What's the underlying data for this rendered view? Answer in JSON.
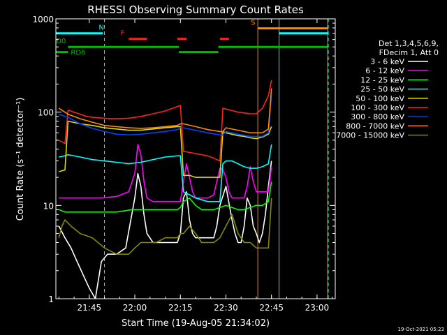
{
  "chart_data": {
    "type": "line",
    "title": "RHESSI Observing Summary Count Rates",
    "xlabel": "Start Time (19-Aug-05 21:34:02)",
    "ylabel": "Count Rate (s⁻¹ detector⁻¹)",
    "x_unit": "minutes after 21:34:02",
    "x_range": [
      0,
      92
    ],
    "y_scale": "log",
    "y_range": [
      1,
      1000
    ],
    "x_ticks": [
      {
        "t": 11,
        "label": "21:45"
      },
      {
        "t": 26,
        "label": "22:00"
      },
      {
        "t": 41,
        "label": "22:15"
      },
      {
        "t": 56,
        "label": "22:30"
      },
      {
        "t": 71,
        "label": "22:45"
      },
      {
        "t": 86,
        "label": "23:00"
      }
    ],
    "y_ticks": [
      {
        "v": 1,
        "label": "1"
      },
      {
        "v": 10,
        "label": "10"
      },
      {
        "v": 100,
        "label": "100"
      },
      {
        "v": 1000,
        "label": "1000"
      }
    ],
    "legend_header": [
      "Det 1,3,4,5,6,9,",
      "FDecim 1, Att 0"
    ],
    "series": [
      {
        "name": "3 - 6 keV",
        "color": "#ffffff",
        "x": [
          1,
          3,
          5,
          7,
          9,
          11,
          13,
          15,
          17,
          20,
          23,
          26,
          27,
          28,
          29,
          30,
          32,
          34,
          36,
          38,
          40,
          41,
          42,
          43,
          44,
          45,
          46,
          47,
          48,
          50,
          52,
          53,
          54,
          56,
          58,
          59,
          60,
          61,
          62,
          63,
          64,
          65,
          66,
          67,
          68,
          69,
          70,
          71
        ],
        "y": [
          6,
          4.5,
          3.5,
          2.5,
          1.8,
          1.3,
          1.0,
          2.5,
          3,
          3,
          3.5,
          12,
          22,
          16,
          8,
          5,
          4,
          4,
          4,
          4,
          4,
          5,
          12,
          14,
          7,
          5,
          4.5,
          4.5,
          4.5,
          4.5,
          4.5,
          6,
          10,
          16,
          7,
          5,
          4,
          4,
          6,
          12,
          10,
          6,
          5,
          4,
          5,
          8,
          16,
          30
        ]
      },
      {
        "name": "6 - 12 keV",
        "color": "#ff00ff",
        "x": [
          1,
          5,
          10,
          15,
          20,
          24,
          26,
          27,
          28,
          29,
          30,
          32,
          35,
          38,
          40,
          41,
          42,
          43,
          44,
          45,
          46,
          48,
          50,
          52,
          53,
          54,
          55,
          56,
          57,
          58,
          60,
          62,
          63,
          64,
          65,
          66,
          68,
          70,
          71
        ],
        "y": [
          12,
          12,
          12,
          12,
          12.5,
          14,
          22,
          45,
          35,
          18,
          12,
          11,
          11,
          11,
          11,
          11,
          18,
          28,
          20,
          14,
          12,
          12,
          12,
          13,
          18,
          25,
          24,
          20,
          14,
          12,
          12,
          12,
          16,
          26,
          18,
          14,
          14,
          14,
          26
        ]
      },
      {
        "name": "12 - 25 keV",
        "color": "#00ff00",
        "x": [
          1,
          3,
          6,
          10,
          15,
          20,
          25,
          30,
          35,
          40,
          41,
          42,
          44,
          46,
          48,
          50,
          52,
          54,
          56,
          58,
          60,
          62,
          64,
          66,
          68,
          70,
          71
        ],
        "y": [
          9,
          8.5,
          8.5,
          8.5,
          8.5,
          8.5,
          9,
          9,
          9,
          9,
          9.5,
          11,
          12,
          10,
          9,
          9,
          9,
          9.5,
          10,
          9.5,
          9,
          9,
          9.5,
          10,
          10,
          11,
          18
        ]
      },
      {
        "name": "25 - 50 keV",
        "color": "#00ffff",
        "x": [
          1,
          3,
          4,
          8,
          12,
          16,
          20,
          24,
          28,
          32,
          36,
          40,
          41,
          42,
          44,
          46,
          48,
          50,
          52,
          54,
          55,
          56,
          58,
          60,
          62,
          64,
          66,
          68,
          70,
          71
        ],
        "y": [
          33,
          34,
          35,
          33,
          31,
          30,
          29,
          28,
          29,
          31,
          33,
          34,
          34,
          14,
          13,
          12,
          11.5,
          11,
          11,
          11,
          28,
          30,
          30,
          28,
          26,
          25,
          25,
          26,
          28,
          45
        ]
      },
      {
        "name": "50 - 100 keV",
        "color": "#dddd00",
        "x": [
          1,
          3,
          4,
          8,
          12,
          16,
          20,
          24,
          28,
          32,
          36,
          40,
          41,
          42,
          44,
          46,
          48,
          50,
          52,
          54,
          55,
          56,
          58,
          60,
          62,
          64,
          66,
          68,
          70,
          71
        ],
        "y": [
          23,
          24,
          80,
          75,
          72,
          68,
          66,
          64,
          64,
          66,
          68,
          70,
          70,
          21,
          21,
          20,
          20,
          20,
          20,
          20,
          62,
          60,
          58,
          56,
          55,
          53,
          52,
          54,
          58,
          70
        ]
      },
      {
        "name": "100 - 300 keV",
        "color": "#ff2020",
        "x": [
          1,
          3,
          4,
          6,
          8,
          10,
          12,
          14,
          16,
          18,
          20,
          24,
          28,
          32,
          36,
          40,
          41,
          42,
          44,
          46,
          48,
          50,
          52,
          54,
          55,
          56,
          58,
          60,
          62,
          64,
          66,
          68,
          70,
          71
        ],
        "y": [
          50,
          46,
          105,
          100,
          95,
          90,
          88,
          87,
          86,
          85,
          85,
          86,
          90,
          96,
          103,
          115,
          118,
          38,
          37,
          36,
          35,
          34,
          32,
          30,
          110,
          108,
          104,
          100,
          98,
          96,
          96,
          110,
          150,
          220
        ]
      },
      {
        "name": "300 - 800 keV",
        "color": "#0044ff",
        "x": [
          1,
          4,
          8,
          12,
          16,
          20,
          24,
          28,
          32,
          36,
          40,
          41,
          42,
          46,
          50,
          54,
          55,
          56,
          60,
          64,
          68,
          70,
          71
        ],
        "y": [
          95,
          88,
          75,
          67,
          62,
          58,
          57,
          58,
          60,
          62,
          65,
          68,
          68,
          64,
          60,
          57,
          57,
          62,
          58,
          55,
          55,
          60,
          150
        ]
      },
      {
        "name": "800 - 7000 keV",
        "color": "#ff8800",
        "x": [
          1,
          4,
          8,
          12,
          16,
          20,
          24,
          28,
          32,
          36,
          40,
          41,
          42,
          46,
          50,
          54,
          55,
          56,
          60,
          64,
          68,
          70,
          71
        ],
        "y": [
          110,
          95,
          85,
          78,
          72,
          70,
          68,
          67,
          68,
          70,
          72,
          75,
          75,
          70,
          65,
          62,
          62,
          68,
          64,
          60,
          60,
          66,
          180
        ]
      },
      {
        "name": "7000 - 15000 keV",
        "color": "#888800",
        "x": [
          1,
          2,
          3,
          5,
          8,
          12,
          16,
          20,
          24,
          26,
          28,
          30,
          33,
          36,
          40,
          41,
          42,
          44,
          46,
          48,
          52,
          54,
          56,
          58,
          60,
          62,
          64,
          66,
          68,
          70,
          71
        ],
        "y": [
          4.5,
          6,
          7,
          6,
          5,
          4.5,
          3.5,
          3,
          3,
          3.5,
          4,
          4,
          4,
          4.5,
          4.5,
          5,
          5,
          6,
          5,
          4,
          4,
          4.5,
          6,
          8,
          5,
          4,
          4,
          3.5,
          3.5,
          3.5,
          12
        ]
      }
    ],
    "state_bars": [
      {
        "label": "N",
        "color": "#00ffff",
        "y_level": 700,
        "segments": [
          [
            0,
            15.5
          ],
          [
            73.5,
            89.5
          ]
        ]
      },
      {
        "label": "F",
        "color": "#ff2020",
        "y_level": 610,
        "segments": [
          [
            24,
            30
          ],
          [
            40,
            43
          ],
          [
            54,
            57
          ]
        ]
      },
      {
        "label": "S",
        "color": "#ff8800",
        "y_level": 790,
        "segments": [
          [
            66.5,
            89.5
          ]
        ]
      },
      {
        "label": "RD0",
        "color": "#00bb00",
        "y_level": 500,
        "segments": [
          [
            4,
            40.5
          ],
          [
            53.5,
            89.5
          ]
        ]
      },
      {
        "label": "RD6",
        "color": "#00bb00",
        "y_level": 440,
        "segments": [
          [
            0,
            4
          ],
          [
            40.5,
            53.5
          ]
        ]
      }
    ],
    "vlines": [
      {
        "t": 0,
        "color": "#00ffff",
        "dash": false
      },
      {
        "t": 16,
        "color": "#00ffff",
        "dash": true
      },
      {
        "t": 66.5,
        "color": "#ff8800",
        "dash": false
      },
      {
        "t": 73.5,
        "color": "#00ffff",
        "dash": false
      },
      {
        "t": 89.5,
        "color": "#ff8800",
        "dash": false
      },
      {
        "t": 89.7,
        "color": "#00ffff",
        "dash": true
      }
    ]
  },
  "footer": {
    "timestamp": "19-Oct-2021 05:23"
  }
}
